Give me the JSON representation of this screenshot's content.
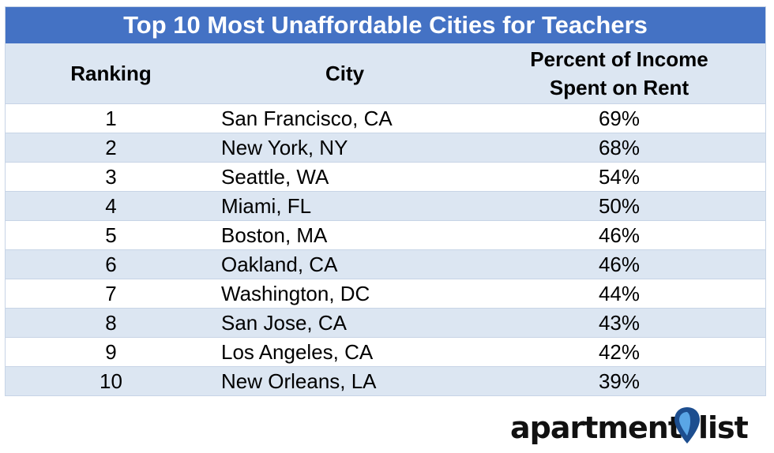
{
  "chart_data": {
    "type": "table",
    "title": "Top 10 Most Unaffordable Cities for Teachers",
    "columns": [
      "Ranking",
      "City",
      "Percent of Income Spent on Rent"
    ],
    "header": {
      "rank": "Ranking",
      "city": "City",
      "pct_line1": "Percent of Income",
      "pct_line2": "Spent on Rent"
    },
    "rows": [
      {
        "rank": "1",
        "city": "San Francisco, CA",
        "pct": "69%"
      },
      {
        "rank": "2",
        "city": "New York, NY",
        "pct": "68%"
      },
      {
        "rank": "3",
        "city": "Seattle, WA",
        "pct": "54%"
      },
      {
        "rank": "4",
        "city": "Miami, FL",
        "pct": "50%"
      },
      {
        "rank": "5",
        "city": "Boston, MA",
        "pct": "46%"
      },
      {
        "rank": "6",
        "city": "Oakland, CA",
        "pct": "46%"
      },
      {
        "rank": "7",
        "city": "Washington, DC",
        "pct": "44%"
      },
      {
        "rank": "8",
        "city": "San Jose, CA",
        "pct": "43%"
      },
      {
        "rank": "9",
        "city": "Los Angeles, CA",
        "pct": "42%"
      },
      {
        "rank": "10",
        "city": "New Orleans, LA",
        "pct": "39%"
      }
    ]
  },
  "logo": {
    "text_left": "apartment",
    "text_right": "list",
    "pin_icon": "map-pin-icon"
  },
  "colors": {
    "title_bar": "#4472c4",
    "band": "#dce6f2",
    "pin_dark": "#1d4e8f",
    "pin_light": "#5aa6e6"
  }
}
